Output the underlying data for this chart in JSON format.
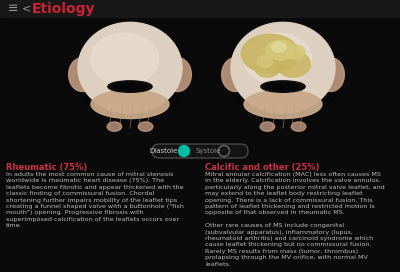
{
  "bg_color": "#0a0a0a",
  "header_bg": "#181818",
  "header_text": "Etiology",
  "header_color": "#cc2233",
  "header_fontsize": 10,
  "toggle_active_color": "#00bba8",
  "toggle_label_left": "Diastole",
  "toggle_label_right": "Systole",
  "section1_title": "Rheumatic (75%)",
  "section1_title_color": "#cc3344",
  "section1_text": "In adults the most common cause of mitral stenosis\nworldwide is rheumatic heart disease (75%). The\nleaflets become fibrotic and appear thickened with the\nclassic finding of commissural fusion. Chordal\nshortening further impairs mobility of the leaflet tips\ncreating a funnel shaped valve with a buttonhole (\"fish\nmouth\") opening. Progressive fibrosis with\nsuperimposed calcification of the leaflets occurs over\ntime.",
  "section2_title": "Calcific and other (25%)",
  "section2_title_color": "#cc3344",
  "section2_text": "Mitral annular calcification (MAC) less often causes MS\nin the elderly. Calcification involves the valve annulus,\nparticularly along the posterior mitral valve leaflet, and\nmay extend to the leaflet body restricting leaflet\nopening. There is a lack of commissural fusion. This\npattern of leaflet thickening and restricted motion is\nopposite of that observed in rheumatic MS.\n\nOther rare causes of MS include congenital\n(subvalvular apparatus), inflammatory (lupus,\nrheumatoid arthritis) and carcinoid syndrome which\ncause leaflet thickening but no commissural fusion.\nRarely MS results from mass (tumor, thrombus)\nprolapsing through the MV orifice, with normal MV\nleaflets.",
  "text_color": "#bbbbbb",
  "text_fontsize": 4.6,
  "title_fontsize": 6.0,
  "valve_body_color": "#ddd0c0",
  "valve_inner_color": "#e8ddd0",
  "valve_posterior_color": "#c8a88a",
  "valve_wing_color": "#c09a80",
  "calcific_color1": "#c8b460",
  "calcific_color2": "#d4c878",
  "calcific_color3": "#e0d898",
  "opening_color": "#0d0d0d",
  "chordae_color": "#b89080"
}
